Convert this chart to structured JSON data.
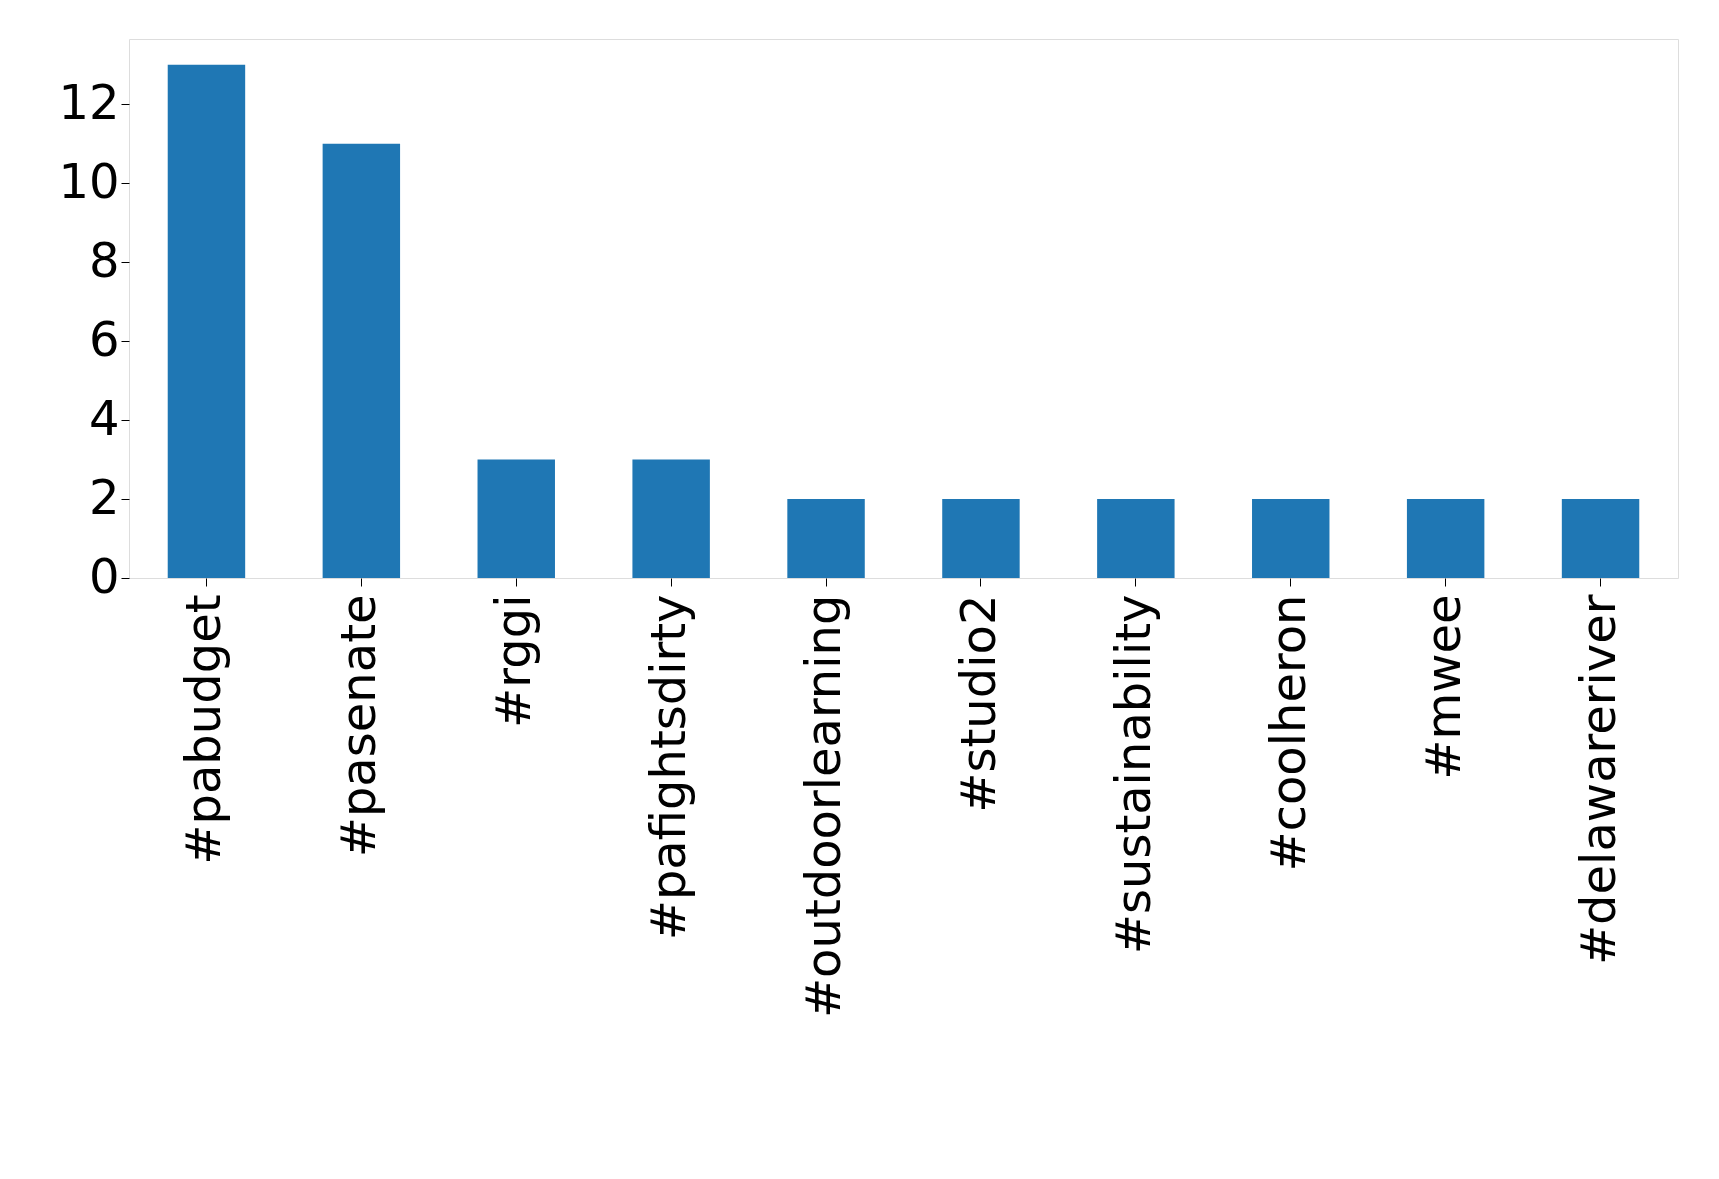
{
  "chart_data": {
    "type": "bar",
    "categories": [
      "#pabudget",
      "#pasenate",
      "#rggi",
      "#pafightsdirty",
      "#outdoorlearning",
      "#studio2",
      "#sustainability",
      "#coolheron",
      "#mwee",
      "#delawareriver"
    ],
    "values": [
      13,
      11,
      3,
      3,
      2,
      2,
      2,
      2,
      2,
      2
    ],
    "color": "#1f77b4",
    "ylim": [
      0,
      13.65
    ],
    "yticks": [
      0,
      2,
      4,
      6,
      8,
      10,
      12
    ],
    "grid": false
  }
}
